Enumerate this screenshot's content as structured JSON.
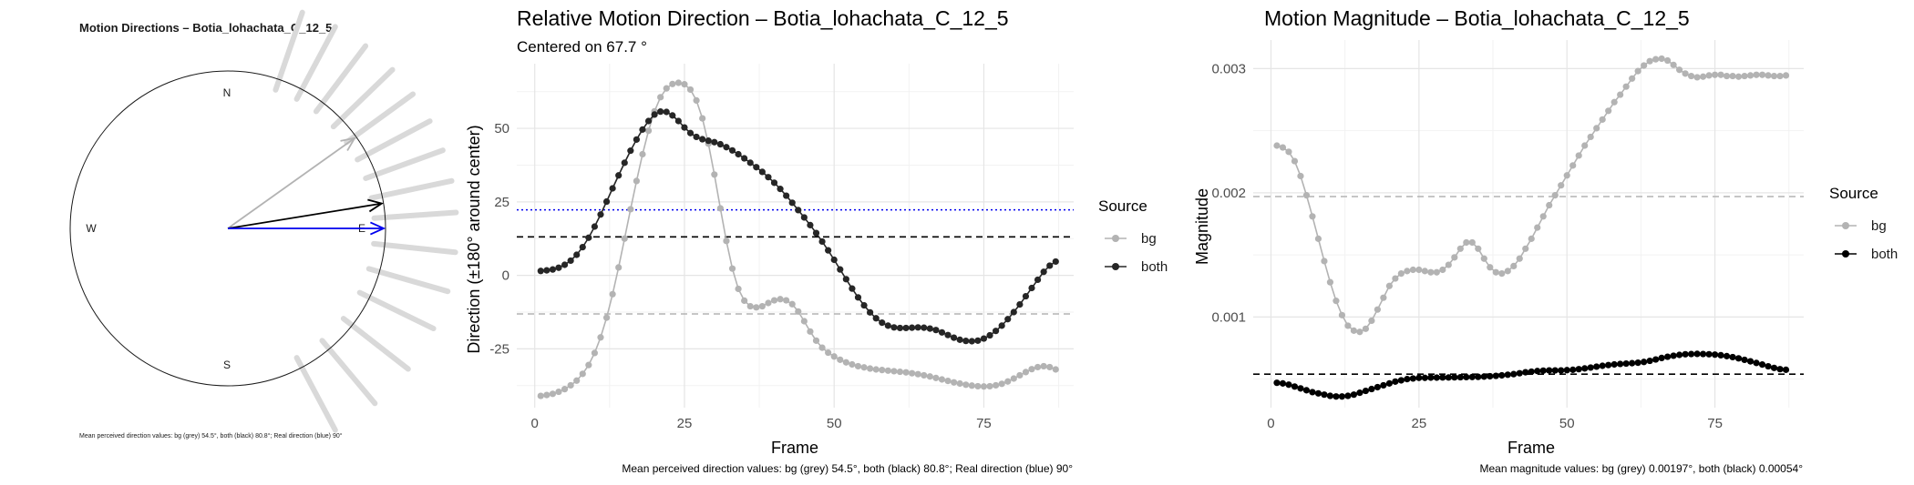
{
  "colors": {
    "bg": "#b3b3b3",
    "both_dir": "#262626",
    "both_mag": "#000000",
    "real": "#0000ee",
    "grid_major": "#e5e5e5",
    "grid_minor": "#f2f2f2",
    "text": "#1a1a1a",
    "tick": "#4d4d4d",
    "fan": "#d9d9d9"
  },
  "chart_data": [
    {
      "type": "compass",
      "title": "Motion Directions – Botia_lohachata_C_12_5",
      "compass_labels": {
        "n": "N",
        "e": "E",
        "s": "S",
        "w": "W"
      },
      "arrows": [
        {
          "name": "bg",
          "angle_deg": 54.5,
          "color": "grey"
        },
        {
          "name": "both",
          "angle_deg": 80.8,
          "color": "black"
        },
        {
          "name": "real",
          "angle_deg": 90,
          "color": "blue"
        }
      ],
      "fan_directions_deg": [
        19,
        28,
        37,
        46,
        54,
        62,
        70,
        78,
        86,
        96,
        106,
        116,
        128,
        140,
        152
      ],
      "caption": "Mean perceived direction values: bg (grey) 54.5°, both (black) 80.8°; Real direction (blue) 90°"
    },
    {
      "type": "line",
      "title": "Relative Motion Direction – Botia_lohachata_C_12_5",
      "subtitle": "Centered on  67.7 °",
      "xlabel": "Frame",
      "ylabel": "Direction (±180° around center)",
      "xlim": [
        -3,
        90
      ],
      "ylim": [
        -45,
        72
      ],
      "xticks": [
        0,
        25,
        50,
        75
      ],
      "xtick_labels": [
        "0",
        "25",
        "50",
        "75"
      ],
      "yticks": [
        -25,
        0,
        25,
        50
      ],
      "ytick_labels": [
        "-25",
        "0",
        "25",
        "50"
      ],
      "legend_title": "Source",
      "legend_position": "right",
      "legend_labels": [
        "bg",
        "both"
      ],
      "hlines": [
        {
          "y": 13.1,
          "style": "dashed",
          "color": "black"
        },
        {
          "y": -13.1,
          "style": "dashed",
          "color": "grey"
        },
        {
          "y": 22.3,
          "style": "dotted",
          "color": "blue"
        }
      ],
      "x": [
        1,
        2,
        3,
        4,
        5,
        6,
        7,
        8,
        9,
        10,
        11,
        12,
        13,
        14,
        15,
        16,
        17,
        18,
        19,
        20,
        21,
        22,
        23,
        24,
        25,
        26,
        27,
        28,
        29,
        30,
        31,
        32,
        33,
        34,
        35,
        36,
        37,
        38,
        39,
        40,
        41,
        42,
        43,
        44,
        45,
        46,
        47,
        48,
        49,
        50,
        51,
        52,
        53,
        54,
        55,
        56,
        57,
        58,
        59,
        60,
        61,
        62,
        63,
        64,
        65,
        66,
        67,
        68,
        69,
        70,
        71,
        72,
        73,
        74,
        75,
        76,
        77,
        78,
        79,
        80,
        81,
        82,
        83,
        84,
        85,
        86,
        87
      ],
      "series": [
        {
          "name": "bg",
          "values": [
            -41,
            -40.7,
            -40.3,
            -39.6,
            -38.7,
            -37.4,
            -35.8,
            -33.5,
            -30.5,
            -26.4,
            -21.1,
            -14.4,
            -6.4,
            2.7,
            12.5,
            22.5,
            32.1,
            41.2,
            49.2,
            55.8,
            60.6,
            63.6,
            65.1,
            65.5,
            65,
            63.2,
            59.5,
            53.4,
            44.8,
            34.3,
            22.8,
            11.7,
            2.3,
            -4.6,
            -8.6,
            -10.5,
            -10.9,
            -10.5,
            -9.4,
            -8.5,
            -8.1,
            -8.5,
            -9.8,
            -12.3,
            -15.6,
            -19.1,
            -22.2,
            -24.6,
            -26.3,
            -27.6,
            -28.7,
            -29.6,
            -30.3,
            -30.9,
            -31.3,
            -31.7,
            -32,
            -32.2,
            -32.4,
            -32.6,
            -32.8,
            -33,
            -33.3,
            -33.6,
            -34,
            -34.4,
            -34.9,
            -35.4,
            -35.9,
            -36.4,
            -36.8,
            -37.2,
            -37.5,
            -37.7,
            -37.8,
            -37.7,
            -37.4,
            -36.9,
            -36.1,
            -35.1,
            -34,
            -32.9,
            -31.9,
            -31.2,
            -30.9,
            -31.2,
            -32
          ]
        },
        {
          "name": "both",
          "values": [
            1.5,
            1.7,
            2,
            2.6,
            3.6,
            5,
            7,
            9.6,
            12.8,
            16.6,
            20.7,
            25.1,
            29.6,
            34,
            38.3,
            42.4,
            46.2,
            49.6,
            52.5,
            54.7,
            55.7,
            55.6,
            54.4,
            52.5,
            50.3,
            48.4,
            47.1,
            46.3,
            45.8,
            45.3,
            44.6,
            43.6,
            42.5,
            41.2,
            39.8,
            38.3,
            36.8,
            35.2,
            33.4,
            31.5,
            29.4,
            27.1,
            24.7,
            22.2,
            19.7,
            17.1,
            14.4,
            11.5,
            8.5,
            5.3,
            2,
            -1.3,
            -4.5,
            -7.5,
            -10.2,
            -12.6,
            -14.6,
            -16.1,
            -17.1,
            -17.7,
            -17.9,
            -17.9,
            -17.8,
            -17.7,
            -17.8,
            -18.1,
            -18.6,
            -19.4,
            -20.3,
            -21.2,
            -21.9,
            -22.3,
            -22.4,
            -22.2,
            -21.5,
            -20.4,
            -18.9,
            -17.1,
            -14.9,
            -12.5,
            -9.9,
            -7.1,
            -4.3,
            -1.5,
            1.2,
            3.3,
            4.7
          ]
        }
      ],
      "caption": "Mean perceived direction values: bg (grey) 54.5°, both (black) 80.8°; Real direction (blue) 90°"
    },
    {
      "type": "line",
      "title": "Motion Magnitude – Botia_lohachata_C_12_5",
      "xlabel": "Frame",
      "ylabel": "Magnitude",
      "xlim": [
        -3,
        90
      ],
      "ylim": [
        0.00027,
        0.00323
      ],
      "xticks": [
        0,
        25,
        50,
        75
      ],
      "xtick_labels": [
        "0",
        "25",
        "50",
        "75"
      ],
      "yticks": [
        0.001,
        0.002,
        0.003
      ],
      "ytick_labels": [
        "0.001",
        "0.002",
        "0.003"
      ],
      "legend_title": "Source",
      "legend_position": "right",
      "legend_labels": [
        "bg",
        "both"
      ],
      "hlines": [
        {
          "y": 0.00197,
          "style": "dashed",
          "color": "grey"
        },
        {
          "y": 0.00054,
          "style": "dashed",
          "color": "black"
        }
      ],
      "x": [
        1,
        2,
        3,
        4,
        5,
        6,
        7,
        8,
        9,
        10,
        11,
        12,
        13,
        14,
        15,
        16,
        17,
        18,
        19,
        20,
        21,
        22,
        23,
        24,
        25,
        26,
        27,
        28,
        29,
        30,
        31,
        32,
        33,
        34,
        35,
        36,
        37,
        38,
        39,
        40,
        41,
        42,
        43,
        44,
        45,
        46,
        47,
        48,
        49,
        50,
        51,
        52,
        53,
        54,
        55,
        56,
        57,
        58,
        59,
        60,
        61,
        62,
        63,
        64,
        65,
        66,
        67,
        68,
        69,
        70,
        71,
        72,
        73,
        74,
        75,
        76,
        77,
        78,
        79,
        80,
        81,
        82,
        83,
        84,
        85,
        86,
        87
      ],
      "series": [
        {
          "name": "bg",
          "values": [
            0.00238,
            0.002365,
            0.00233,
            0.002255,
            0.002135,
            0.00198,
            0.00181,
            0.00163,
            0.00145,
            0.00128,
            0.00113,
            0.001015,
            0.00093,
            0.00089,
            0.00088,
            0.000905,
            0.00097,
            0.00106,
            0.001155,
            0.00125,
            0.00131,
            0.00135,
            0.00137,
            0.00138,
            0.00138,
            0.00137,
            0.00136,
            0.00136,
            0.00138,
            0.00142,
            0.00148,
            0.00155,
            0.0016,
            0.0016,
            0.00155,
            0.00147,
            0.0014,
            0.00136,
            0.00135,
            0.00137,
            0.00141,
            0.00147,
            0.00155,
            0.00163,
            0.00172,
            0.00181,
            0.0019,
            0.00198,
            0.00206,
            0.00214,
            0.00222,
            0.0023,
            0.00238,
            0.00245,
            0.00252,
            0.00259,
            0.00266,
            0.00273,
            0.00279,
            0.002855,
            0.00292,
            0.00298,
            0.003025,
            0.00306,
            0.003075,
            0.00308,
            0.003065,
            0.00303,
            0.00299,
            0.00296,
            0.00294,
            0.00293,
            0.002935,
            0.002945,
            0.00295,
            0.00295,
            0.00294,
            0.00294,
            0.002935,
            0.00294,
            0.002945,
            0.00295,
            0.00295,
            0.002945,
            0.00294,
            0.00294,
            0.002945
          ]
        },
        {
          "name": "both",
          "values": [
            0.00047,
            0.000465,
            0.000455,
            0.00044,
            0.000425,
            0.00041,
            0.000395,
            0.000385,
            0.000375,
            0.000365,
            0.00036,
            0.00036,
            0.000365,
            0.000375,
            0.00039,
            0.000405,
            0.00042,
            0.000435,
            0.00045,
            0.000465,
            0.00048,
            0.00049,
            0.0005,
            0.000505,
            0.00051,
            0.00051,
            0.000512,
            0.000512,
            0.000513,
            0.000513,
            0.000514,
            0.000515,
            0.000516,
            0.000517,
            0.000518,
            0.00052,
            0.000523,
            0.000526,
            0.00053,
            0.000535,
            0.00054,
            0.000547,
            0.000555,
            0.00056,
            0.000565,
            0.000568,
            0.00057,
            0.00057,
            0.00057,
            0.000572,
            0.000575,
            0.00058,
            0.000586,
            0.000593,
            0.0006,
            0.000607,
            0.000613,
            0.000618,
            0.000622,
            0.000625,
            0.000628,
            0.000632,
            0.000638,
            0.000647,
            0.000658,
            0.00067,
            0.00068,
            0.000688,
            0.000695,
            0.0007,
            0.000702,
            0.000703,
            0.000702,
            0.0007,
            0.000697,
            0.000692,
            0.000685,
            0.000677,
            0.000667,
            0.000655,
            0.000643,
            0.00063,
            0.000617,
            0.000603,
            0.00059,
            0.00058,
            0.000575
          ]
        }
      ],
      "caption": "Mean magnitude values: bg (grey) 0.00197°, both (black) 0.00054°"
    }
  ]
}
